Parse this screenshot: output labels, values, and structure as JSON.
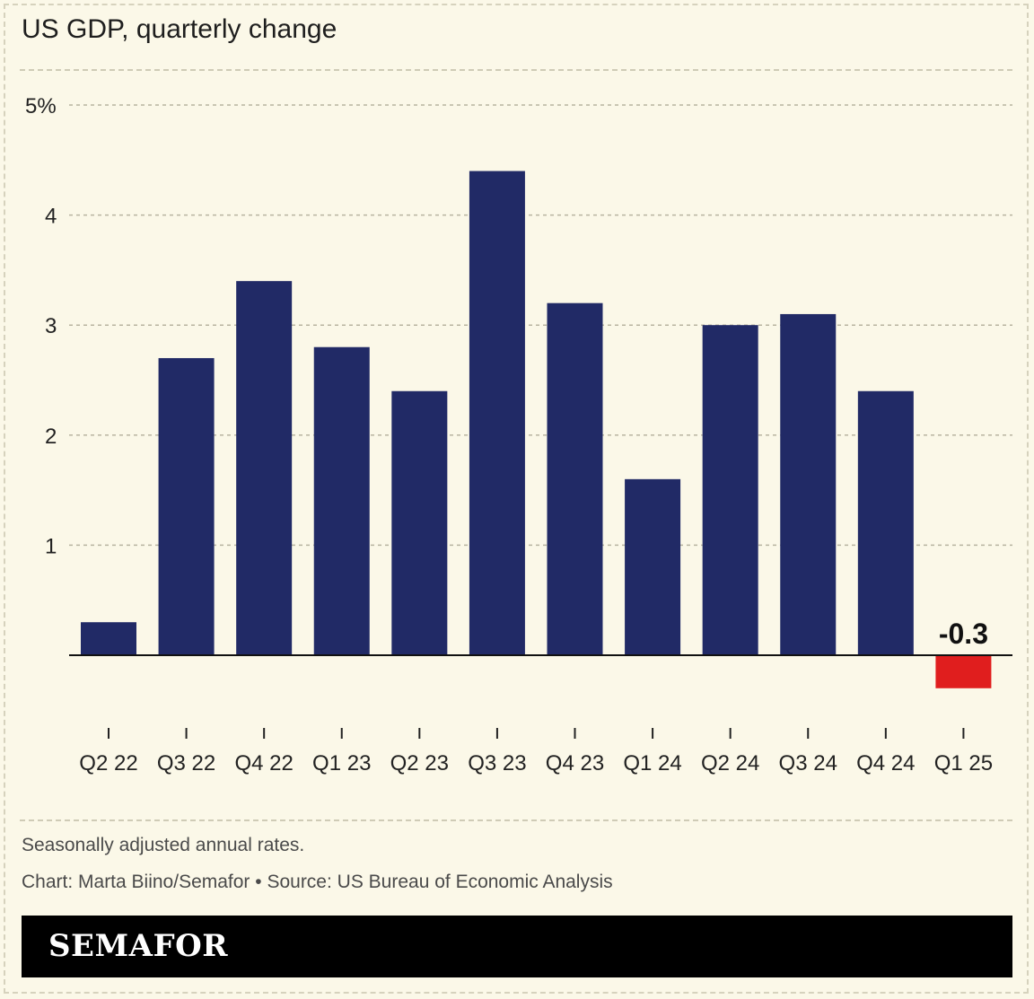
{
  "title": "US GDP, quarterly change",
  "notes": {
    "subtitle": "Seasonally adjusted annual rates.",
    "credit": "Chart: Marta Biino/Semafor • Source: US Bureau of Economic Analysis"
  },
  "brand": "SEMAFOR",
  "chart_data": {
    "type": "bar",
    "title": "US GDP, quarterly change",
    "xlabel": "",
    "ylabel": "",
    "ylim": [
      -0.3,
      5
    ],
    "yticks": [
      1,
      2,
      3,
      4,
      5
    ],
    "ytick_labels": [
      "1",
      "2",
      "3",
      "4",
      "5%"
    ],
    "grid": true,
    "categories": [
      "Q2 22",
      "Q3 22",
      "Q4 22",
      "Q1 23",
      "Q2 23",
      "Q3 23",
      "Q4 23",
      "Q1 24",
      "Q2 24",
      "Q3 24",
      "Q4 24",
      "Q1 25"
    ],
    "values": [
      0.3,
      2.7,
      3.4,
      2.8,
      2.4,
      4.4,
      3.2,
      1.6,
      3.0,
      3.1,
      2.4,
      -0.3
    ],
    "annotations": [
      {
        "category": "Q1 25",
        "text": "-0.3"
      }
    ],
    "colors": {
      "positive": "#212a66",
      "negative": "#e01e1e",
      "grid": "#b8b4a0",
      "axis": "#111111"
    }
  }
}
